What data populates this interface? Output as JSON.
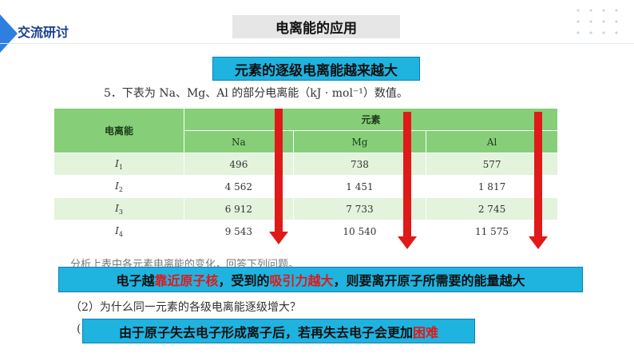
{
  "header": {
    "tag": "交流研讨",
    "topic": "电离能的应用"
  },
  "banner_top": "元素的逐级电离能越来越大",
  "question": "5．下表为 Na、Mg、Al 的部分电离能（kJ · mol⁻¹）数值。",
  "table": {
    "row_header_label": "电离能",
    "group_label": "元素",
    "columns": [
      "Na",
      "Mg",
      "Al"
    ],
    "rows": [
      {
        "label": "I",
        "sub": "1",
        "values": [
          "496",
          "738",
          "577"
        ]
      },
      {
        "label": "I",
        "sub": "2",
        "values": [
          "4 562",
          "1 451",
          "1 817"
        ]
      },
      {
        "label": "I",
        "sub": "3",
        "values": [
          "6 912",
          "7 733",
          "2 745"
        ]
      },
      {
        "label": "I",
        "sub": "4",
        "values": [
          "9 543",
          "10 540",
          "11 575"
        ]
      }
    ]
  },
  "faded_line": "分析上表中各元素电离能的变化，回答下列问题。",
  "answer_1": {
    "p1": "电子越",
    "p2": "靠近原子核",
    "p3": "，受到的",
    "p4": "吸引力越大",
    "p5": "，则要离开原子所需要的能量越大"
  },
  "sub_question_2": "（2）为什么同一元素的各级电离能逐级增大？",
  "sub_question_2_paren": "(",
  "answer_2": {
    "p1": "由于原子失去电子形成离子后，若再失去电子会更加",
    "p2": "困难"
  },
  "colors": {
    "accent_blue": "#1fb3e0",
    "arrow_red": "#e01919",
    "table_header_green": "#86cf78",
    "table_row_green": "#e3f3dc"
  }
}
